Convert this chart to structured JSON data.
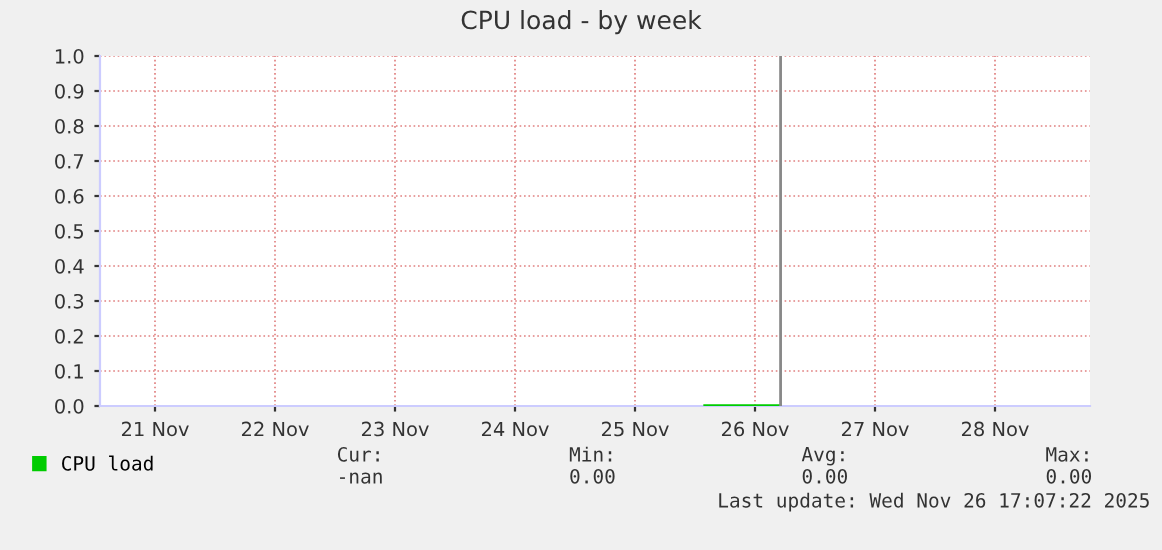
{
  "chart_data": {
    "type": "line",
    "title": "CPU load - by week",
    "series": [
      {
        "name": "CPU load",
        "color": "#00cc00",
        "x": [
          "2025-11-26T02:00",
          "2025-11-26T17:00"
        ],
        "values": [
          0,
          0
        ]
      }
    ],
    "xlim": [
      "2025-11-21T01:00",
      "2025-11-29T07:00"
    ],
    "xticks": [
      {
        "value": "2025-11-21T12:00",
        "label": "21 Nov"
      },
      {
        "value": "2025-11-22T12:00",
        "label": "22 Nov"
      },
      {
        "value": "2025-11-23T12:00",
        "label": "23 Nov"
      },
      {
        "value": "2025-11-24T12:00",
        "label": "24 Nov"
      },
      {
        "value": "2025-11-25T12:00",
        "label": "25 Nov"
      },
      {
        "value": "2025-11-26T12:00",
        "label": "26 Nov"
      },
      {
        "value": "2025-11-27T12:00",
        "label": "27 Nov"
      },
      {
        "value": "2025-11-28T12:00",
        "label": "28 Nov"
      }
    ],
    "ylim": [
      0,
      1
    ],
    "yticks": [
      {
        "value": 0,
        "label": "0.0"
      },
      0.1,
      0.2,
      0.3,
      0.4,
      0.5,
      0.6,
      0.7,
      0.8,
      0.9,
      {
        "value": 1,
        "label": "1.0"
      }
    ],
    "grid": true,
    "legend": "bottom left",
    "marker": "none",
    "line_style": "solid",
    "ref_lines": [
      {
        "axis": "x",
        "value": "2025-11-26T17:07",
        "label": null,
        "color": "#888888"
      }
    ],
    "annotations": [
      "Cur:",
      "Min:",
      "Avg:",
      "Max:",
      "-nan",
      "0.00",
      "0.00",
      "0.00",
      "Last update: Wed Nov 26 17:07:22 2025"
    ]
  }
}
